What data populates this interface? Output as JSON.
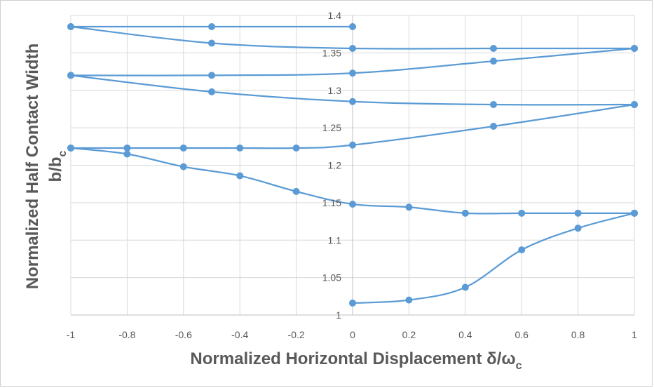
{
  "chart_data": {
    "type": "line",
    "title": "",
    "xlabel": "Normalized Horizontal Displacement δ/ω",
    "xlabel_sub": "c",
    "ylabel_line1": "Normalized Half Contact Width",
    "ylabel_line2": "b/b",
    "ylabel_sub": "c",
    "xlim": [
      -1,
      1
    ],
    "ylim": [
      1,
      1.4
    ],
    "xticks": [
      "-1",
      "-0.8",
      "-0.6",
      "-0.4",
      "-0.2",
      "0",
      "0.2",
      "0.4",
      "0.6",
      "0.8",
      "1"
    ],
    "yticks": [
      "1",
      "1.05",
      "1.1",
      "1.15",
      "1.2",
      "1.25",
      "1.3",
      "1.35",
      "1.4"
    ],
    "grid": true,
    "legend": "none",
    "color": "#5B9BD5",
    "series": [
      {
        "points": [
          [
            0,
            1.016
          ],
          [
            0.2,
            1.02
          ],
          [
            0.4,
            1.037
          ],
          [
            0.6,
            1.087
          ],
          [
            0.8,
            1.116
          ],
          [
            1,
            1.136
          ]
        ]
      },
      {
        "points": [
          [
            1,
            1.136
          ],
          [
            0.8,
            1.136
          ],
          [
            0.6,
            1.136
          ],
          [
            0.4,
            1.136
          ],
          [
            0.2,
            1.144
          ],
          [
            0,
            1.148
          ],
          [
            -0.2,
            1.165
          ],
          [
            -0.4,
            1.186
          ],
          [
            -0.6,
            1.198
          ],
          [
            -0.8,
            1.215
          ],
          [
            -1,
            1.223
          ]
        ]
      },
      {
        "points": [
          [
            -1,
            1.223
          ],
          [
            -0.8,
            1.223
          ],
          [
            -0.6,
            1.223
          ],
          [
            -0.4,
            1.223
          ],
          [
            -0.2,
            1.223
          ],
          [
            0,
            1.227
          ],
          [
            0.5,
            1.252
          ],
          [
            1,
            1.281
          ]
        ]
      },
      {
        "points": [
          [
            1,
            1.281
          ],
          [
            0.5,
            1.281
          ],
          [
            0,
            1.285
          ],
          [
            -0.5,
            1.298
          ],
          [
            -1,
            1.32
          ]
        ]
      },
      {
        "points": [
          [
            -1,
            1.32
          ],
          [
            -0.5,
            1.32
          ],
          [
            0,
            1.323
          ],
          [
            0.5,
            1.339
          ],
          [
            1,
            1.356
          ]
        ]
      },
      {
        "points": [
          [
            1,
            1.356
          ],
          [
            0.5,
            1.356
          ],
          [
            0,
            1.356
          ],
          [
            -0.5,
            1.363
          ],
          [
            -1,
            1.385
          ]
        ]
      },
      {
        "points": [
          [
            -1,
            1.385
          ],
          [
            -0.5,
            1.385
          ],
          [
            0,
            1.385
          ]
        ]
      }
    ]
  }
}
